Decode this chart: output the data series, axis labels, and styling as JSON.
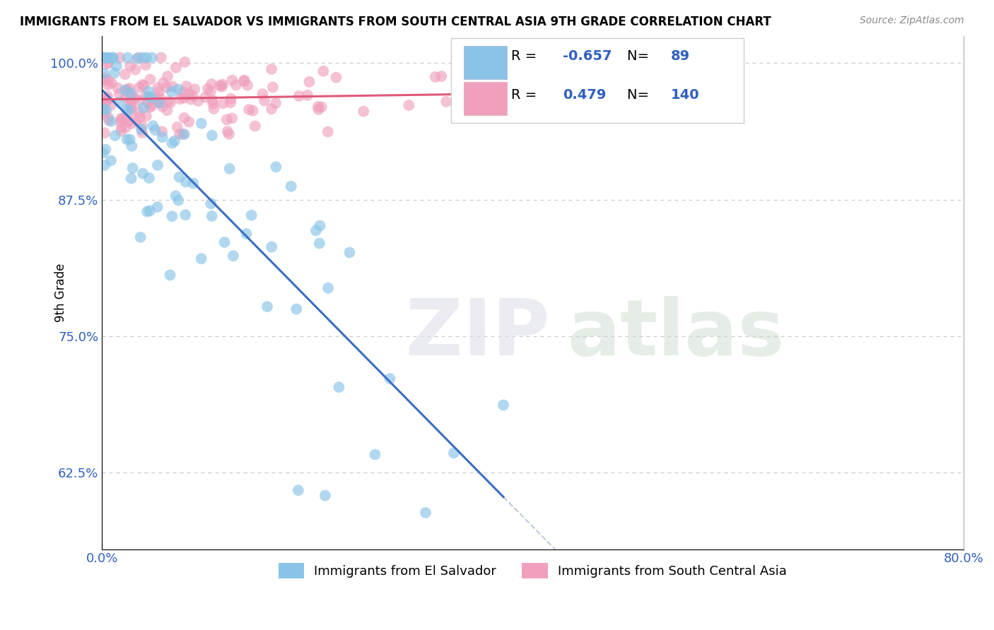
{
  "title": "IMMIGRANTS FROM EL SALVADOR VS IMMIGRANTS FROM SOUTH CENTRAL ASIA 9TH GRADE CORRELATION CHART",
  "source": "Source: ZipAtlas.com",
  "xlabel_bottom": "Immigrants from El Salvador",
  "xlabel_bottom2": "Immigrants from South Central Asia",
  "ylabel": "9th Grade",
  "xlim": [
    0.0,
    0.8
  ],
  "ylim": [
    0.555,
    1.025
  ],
  "xticks": [
    0.0,
    0.1,
    0.2,
    0.3,
    0.4,
    0.5,
    0.6,
    0.7,
    0.8
  ],
  "xticklabels": [
    "0.0%",
    "",
    "",
    "",
    "",
    "",
    "",
    "",
    "80.0%"
  ],
  "yticks": [
    0.625,
    0.75,
    0.875,
    1.0
  ],
  "yticklabels": [
    "62.5%",
    "75.0%",
    "87.5%",
    "100.0%"
  ],
  "blue_color": "#89C4E8",
  "pink_color": "#F0A0BE",
  "blue_line_color": "#3A6EC0",
  "pink_line_color": "#E05878",
  "legend_R_blue": "-0.657",
  "legend_N_blue": "89",
  "legend_R_pink": "0.479",
  "legend_N_pink": "140",
  "blue_seed": 12,
  "pink_seed": 55,
  "blue_n": 89,
  "pink_n": 140
}
